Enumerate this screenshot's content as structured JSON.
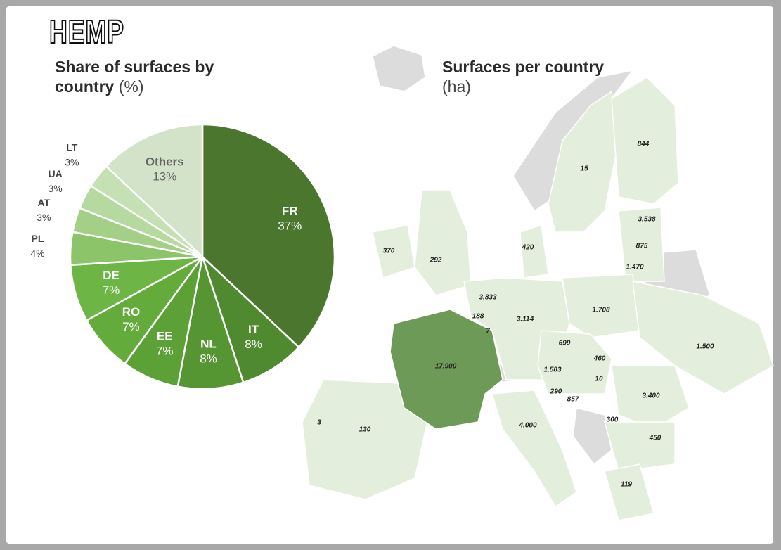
{
  "header": "HEMP",
  "chart_data": [
    {
      "type": "pie",
      "title": "Share of surfaces by country",
      "unit": "(%)",
      "categories": [
        "FR",
        "IT",
        "NL",
        "EE",
        "RO",
        "DE",
        "PL",
        "AT",
        "UA",
        "LT",
        "Others"
      ],
      "values": [
        37,
        8,
        8,
        7,
        7,
        7,
        4,
        3,
        3,
        3,
        13
      ],
      "value_labels": [
        "37%",
        "8%",
        "8%",
        "7%",
        "7%",
        "7%",
        "4%",
        "3%",
        "3%",
        "3%",
        "13%"
      ],
      "colors": [
        "#4a772d",
        "#4f8a30",
        "#559632",
        "#5ca135",
        "#63ab3b",
        "#6db545",
        "#8cc46a",
        "#a3cf87",
        "#b6d9a0",
        "#c5e0b2",
        "#d3e3c9"
      ]
    },
    {
      "type": "map",
      "title": "Surfaces per country",
      "unit": "(ha)",
      "values": [
        844,
        15,
        3538,
        875,
        1470,
        370,
        292,
        420,
        3833,
        188,
        7,
        3114,
        1708,
        1500,
        699,
        460,
        17900,
        1583,
        10,
        3400,
        290,
        857,
        300,
        3,
        130,
        4000,
        450,
        119
      ],
      "value_labels": [
        "844",
        "15",
        "3.538",
        "875",
        "1.470",
        "370",
        "292",
        "420",
        "3.833",
        "188",
        "7",
        "3.114",
        "1.708",
        "1.500",
        "699",
        "460",
        "17.900",
        "1.583",
        "10",
        "3.400",
        "290",
        "857",
        "300",
        "3",
        "130",
        "4.000",
        "450",
        "119"
      ]
    }
  ]
}
